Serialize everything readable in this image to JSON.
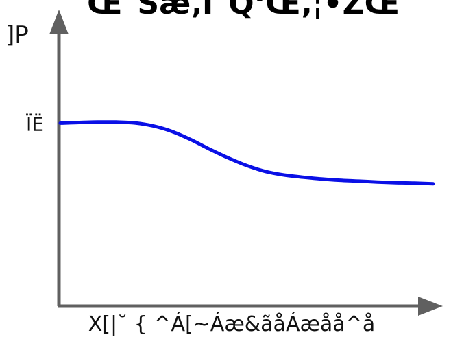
{
  "chart_data": {
    "type": "line",
    "title": "Œ˜Šæ‚Ì˜Q‘Œ‚¦•ŽŒ",
    "ylabel": "]P",
    "xlabel": "X[|˘ { ^Á[~Áæ&ãåÁæåå^å",
    "ytick_label": "ÏË",
    "ytick_value": 0.83,
    "xlim": [
      0,
      1
    ],
    "ylim": [
      0,
      1.35
    ],
    "grid": false,
    "legend": "none",
    "colors": {
      "line": "#0a10e6",
      "axes": "#606060"
    },
    "series": [
      {
        "x": [
          0,
          0.05,
          0.1,
          0.15,
          0.2,
          0.25,
          0.3,
          0.35,
          0.4,
          0.45,
          0.5,
          0.55,
          0.6,
          0.65,
          0.7,
          0.75,
          0.8,
          0.85,
          0.9,
          0.95,
          1.0
        ],
        "values": [
          0.833,
          0.836,
          0.838,
          0.838,
          0.834,
          0.82,
          0.795,
          0.758,
          0.715,
          0.675,
          0.64,
          0.613,
          0.597,
          0.587,
          0.579,
          0.573,
          0.569,
          0.565,
          0.562,
          0.56,
          0.557
        ]
      }
    ]
  }
}
